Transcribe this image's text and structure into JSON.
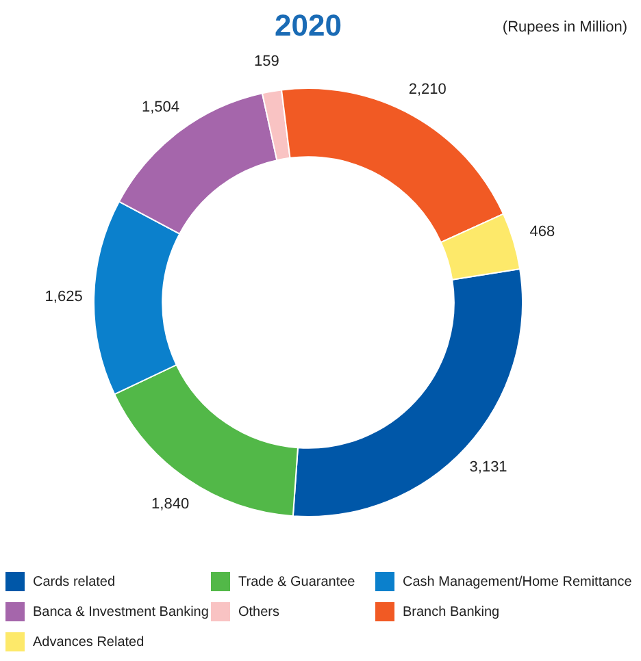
{
  "chart_data": {
    "type": "donut",
    "title": "2020",
    "subtitle": "(Rupees in Million)",
    "categories": [
      "Cards related",
      "Trade & Guarantee",
      "Cash Management/Home Remittance",
      "Banca & Investment Banking",
      "Others",
      "Branch Banking",
      "Advances Related"
    ],
    "values": [
      3131,
      1840,
      1625,
      1504,
      159,
      2210,
      468
    ],
    "colors": [
      "#0057a8",
      "#52b848",
      "#0b80cc",
      "#a566ab",
      "#f9c3c3",
      "#f15a24",
      "#fde96a"
    ],
    "value_labels": [
      "3,131",
      "1,840",
      "1,625",
      "1,504",
      "159",
      "2,210",
      "468"
    ],
    "legend": "bottom"
  }
}
